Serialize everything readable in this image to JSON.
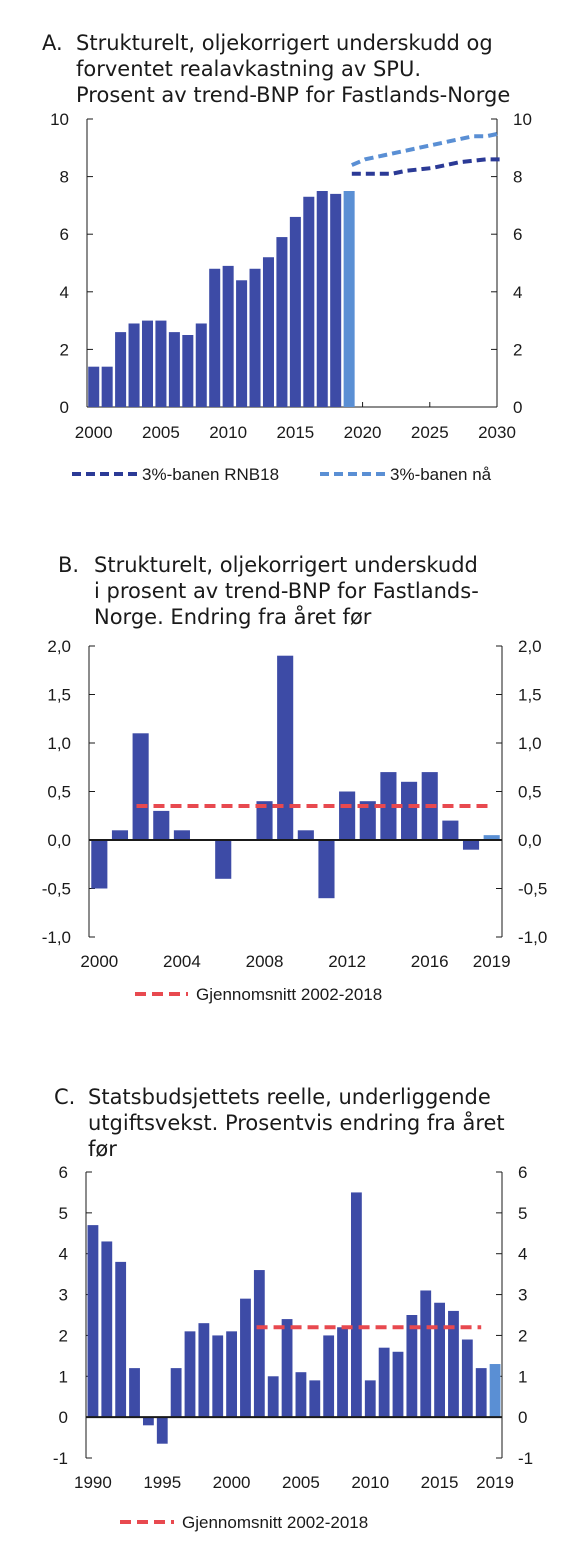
{
  "colors": {
    "bar": "#3d4ba6",
    "bar_highlight": "#5a8fd4",
    "line_dark": "#2b3a96",
    "line_light": "#5a8fd4",
    "avg_line": "#e8494f",
    "axis": "#1a1a1a"
  },
  "chart_data": [
    {
      "type": "bar",
      "letter": "A.",
      "title_lines": [
        "Strukturelt, oljekorrigert underskudd og",
        "forventet realavkastning av SPU.",
        "Prosent av trend-BNP for Fastlands-Norge"
      ],
      "x": [
        2000,
        2001,
        2002,
        2003,
        2004,
        2005,
        2006,
        2007,
        2008,
        2009,
        2010,
        2011,
        2012,
        2013,
        2014,
        2015,
        2016,
        2017,
        2018,
        2019
      ],
      "values": [
        1.4,
        1.4,
        2.6,
        2.9,
        3.0,
        3.0,
        2.6,
        2.5,
        2.9,
        4.8,
        4.9,
        4.4,
        4.8,
        5.2,
        5.9,
        6.6,
        7.3,
        7.5,
        7.4,
        7.5
      ],
      "highlight_index": [
        19
      ],
      "xlim": [
        1999.5,
        2030
      ],
      "ylim": [
        0,
        10
      ],
      "yticks": [
        "0",
        "2",
        "4",
        "6",
        "8",
        "10"
      ],
      "xticks": [
        "2000",
        "2005",
        "2010",
        "2015",
        "2020",
        "2025",
        "2030"
      ],
      "lines": [
        {
          "name": "3%-banen RNB18",
          "style": "dashed",
          "color": "#2b3a96",
          "x": [
            2019,
            2020,
            2021,
            2022,
            2023,
            2024,
            2025,
            2026,
            2027,
            2028,
            2029,
            2030
          ],
          "y": [
            8.1,
            8.1,
            8.1,
            8.1,
            8.2,
            8.25,
            8.3,
            8.4,
            8.5,
            8.55,
            8.6,
            8.6
          ]
        },
        {
          "name": "3%-banen nå",
          "style": "dashed",
          "color": "#5a8fd4",
          "x": [
            2019,
            2020,
            2021,
            2022,
            2023,
            2024,
            2025,
            2026,
            2027,
            2028,
            2029,
            2030
          ],
          "y": [
            8.4,
            8.6,
            8.7,
            8.8,
            8.9,
            9.0,
            9.1,
            9.2,
            9.3,
            9.4,
            9.4,
            9.5
          ]
        }
      ],
      "legend": [
        "3%-banen RNB18",
        "3%-banen nå"
      ]
    },
    {
      "type": "bar",
      "letter": "B.",
      "title_lines": [
        "Strukturelt, oljekorrigert underskudd",
        "i prosent av trend-BNP for Fastlands-",
        "Norge. Endring fra året før"
      ],
      "x": [
        2000,
        2001,
        2002,
        2003,
        2004,
        2005,
        2006,
        2007,
        2008,
        2009,
        2010,
        2011,
        2012,
        2013,
        2014,
        2015,
        2016,
        2017,
        2018,
        2019
      ],
      "values": [
        -0.5,
        0.1,
        1.1,
        0.3,
        0.1,
        0.0,
        -0.4,
        0.0,
        0.4,
        1.9,
        0.1,
        -0.6,
        0.5,
        0.4,
        0.7,
        0.6,
        0.7,
        0.2,
        -0.1,
        0.05
      ],
      "highlight_index": [
        19
      ],
      "ylim": [
        -1.0,
        2.0
      ],
      "yticks": [
        "-1,0",
        "-0,5",
        "0,0",
        "0,5",
        "1,0",
        "1,5",
        "2,0"
      ],
      "xticks": [
        "2000",
        "2004",
        "2008",
        "2012",
        "2016",
        "2019"
      ],
      "average": {
        "label": "Gjennomsnitt 2002-2018",
        "value": 0.35,
        "from": 2002,
        "to": 2019
      },
      "legend": [
        "Gjennomsnitt 2002-2018"
      ]
    },
    {
      "type": "bar",
      "letter": "C.",
      "title_lines": [
        "Statsbudsjettets reelle, underliggende",
        "utgiftsvekst. Prosentvis endring fra året",
        "før"
      ],
      "x": [
        1990,
        1991,
        1992,
        1993,
        1994,
        1995,
        1996,
        1997,
        1998,
        1999,
        2000,
        2001,
        2002,
        2003,
        2004,
        2005,
        2006,
        2007,
        2008,
        2009,
        2010,
        2011,
        2012,
        2013,
        2014,
        2015,
        2016,
        2017,
        2018,
        2019
      ],
      "values": [
        4.7,
        4.3,
        3.8,
        1.2,
        -0.2,
        -0.65,
        1.2,
        2.1,
        2.3,
        2.0,
        2.1,
        2.9,
        3.6,
        1.0,
        2.4,
        1.1,
        0.9,
        2.0,
        2.2,
        5.5,
        0.9,
        1.7,
        1.6,
        2.5,
        3.1,
        2.8,
        2.6,
        1.9,
        1.2,
        1.3
      ],
      "highlight_index": [
        29
      ],
      "ylim": [
        -1,
        6
      ],
      "yticks": [
        "-1",
        "0",
        "1",
        "2",
        "3",
        "4",
        "5",
        "6"
      ],
      "xticks": [
        "1990",
        "1995",
        "2000",
        "2005",
        "2010",
        "2015",
        "2019"
      ],
      "average": {
        "label": "Gjennomsnitt 2002-2018",
        "value": 2.2,
        "from": 2002,
        "to": 2018
      },
      "legend": [
        "Gjennomsnitt 2002-2018"
      ]
    }
  ]
}
